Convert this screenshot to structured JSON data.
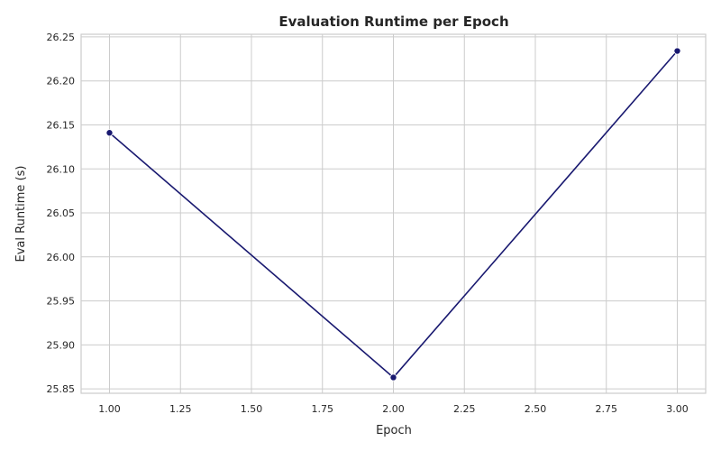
{
  "chart_data": {
    "type": "line",
    "title": "Evaluation Runtime per Epoch",
    "xlabel": "Epoch",
    "ylabel": "Eval Runtime (s)",
    "x": [
      1.0,
      2.0,
      3.0
    ],
    "series": [
      {
        "values": [
          26.141,
          25.863,
          26.234
        ],
        "color": "#191970"
      }
    ],
    "xlim": [
      0.9,
      3.1
    ],
    "ylim": [
      25.845,
      26.253
    ],
    "xticks": [
      "1.00",
      "1.25",
      "1.50",
      "1.75",
      "2.00",
      "2.25",
      "2.50",
      "2.75",
      "3.00"
    ],
    "xtick_values": [
      1.0,
      1.25,
      1.5,
      1.75,
      2.0,
      2.25,
      2.5,
      2.75,
      3.0
    ],
    "yticks": [
      "25.85",
      "25.90",
      "25.95",
      "26.00",
      "26.05",
      "26.10",
      "26.15",
      "26.20",
      "26.25"
    ],
    "ytick_values": [
      25.85,
      25.9,
      25.95,
      26.0,
      26.05,
      26.1,
      26.15,
      26.2,
      26.25
    ],
    "grid": true,
    "background": "#ffffff",
    "grid_color": "#cccccc"
  }
}
